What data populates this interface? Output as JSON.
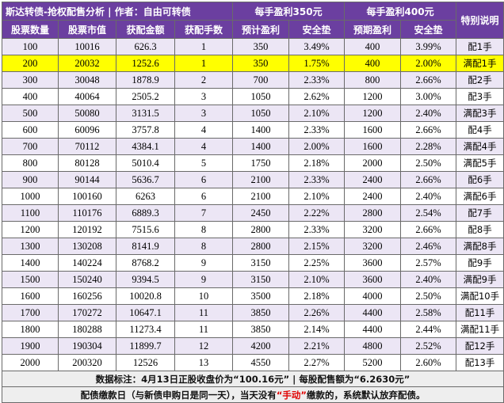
{
  "title": "斯达转债-抢权配售分析 | 作者：自由可转债",
  "group1": "每手盈利350元",
  "group2": "每手盈利400元",
  "special": "特别说明",
  "columns": [
    "股票数量",
    "股票市值",
    "获配金额",
    "获配手数",
    "预计盈利",
    "安全垫",
    "预期盈利",
    "安全垫"
  ],
  "rows": [
    {
      "qty": "100",
      "value": "10016",
      "amount": "626.3",
      "lots": "1",
      "p1": "350",
      "s1": "3.49%",
      "p2": "400",
      "s2": "3.99%",
      "note": "配1手",
      "hl": false
    },
    {
      "qty": "200",
      "value": "20032",
      "amount": "1252.6",
      "lots": "1",
      "p1": "350",
      "s1": "1.75%",
      "p2": "400",
      "s2": "2.00%",
      "note": "满配1手",
      "hl": true
    },
    {
      "qty": "300",
      "value": "30048",
      "amount": "1878.9",
      "lots": "2",
      "p1": "700",
      "s1": "2.33%",
      "p2": "800",
      "s2": "2.66%",
      "note": "配2手",
      "hl": false
    },
    {
      "qty": "400",
      "value": "40064",
      "amount": "2505.2",
      "lots": "3",
      "p1": "1050",
      "s1": "2.62%",
      "p2": "1200",
      "s2": "3.00%",
      "note": "配3手",
      "hl": false
    },
    {
      "qty": "500",
      "value": "50080",
      "amount": "3131.5",
      "lots": "3",
      "p1": "1050",
      "s1": "2.10%",
      "p2": "1200",
      "s2": "2.40%",
      "note": "满配3手",
      "hl": false
    },
    {
      "qty": "600",
      "value": "60096",
      "amount": "3757.8",
      "lots": "4",
      "p1": "1400",
      "s1": "2.33%",
      "p2": "1600",
      "s2": "2.66%",
      "note": "配4手",
      "hl": false
    },
    {
      "qty": "700",
      "value": "70112",
      "amount": "4384.1",
      "lots": "4",
      "p1": "1400",
      "s1": "2.00%",
      "p2": "1600",
      "s2": "2.28%",
      "note": "满配4手",
      "hl": false
    },
    {
      "qty": "800",
      "value": "80128",
      "amount": "5010.4",
      "lots": "5",
      "p1": "1750",
      "s1": "2.18%",
      "p2": "2000",
      "s2": "2.50%",
      "note": "满配5手",
      "hl": false
    },
    {
      "qty": "900",
      "value": "90144",
      "amount": "5636.7",
      "lots": "6",
      "p1": "2100",
      "s1": "2.33%",
      "p2": "2400",
      "s2": "2.66%",
      "note": "配6手",
      "hl": false
    },
    {
      "qty": "1000",
      "value": "100160",
      "amount": "6263",
      "lots": "6",
      "p1": "2100",
      "s1": "2.10%",
      "p2": "2400",
      "s2": "2.40%",
      "note": "满配6手",
      "hl": false
    },
    {
      "qty": "1100",
      "value": "110176",
      "amount": "6889.3",
      "lots": "7",
      "p1": "2450",
      "s1": "2.22%",
      "p2": "2800",
      "s2": "2.54%",
      "note": "配7手",
      "hl": false
    },
    {
      "qty": "1200",
      "value": "120192",
      "amount": "7515.6",
      "lots": "8",
      "p1": "2800",
      "s1": "2.33%",
      "p2": "3200",
      "s2": "2.66%",
      "note": "配8手",
      "hl": false
    },
    {
      "qty": "1300",
      "value": "130208",
      "amount": "8141.9",
      "lots": "8",
      "p1": "2800",
      "s1": "2.15%",
      "p2": "3200",
      "s2": "2.46%",
      "note": "满配8手",
      "hl": false
    },
    {
      "qty": "1400",
      "value": "140224",
      "amount": "8768.2",
      "lots": "9",
      "p1": "3150",
      "s1": "2.25%",
      "p2": "3600",
      "s2": "2.57%",
      "note": "配9手",
      "hl": false
    },
    {
      "qty": "1500",
      "value": "150240",
      "amount": "9394.5",
      "lots": "9",
      "p1": "3150",
      "s1": "2.10%",
      "p2": "3600",
      "s2": "2.40%",
      "note": "满配9手",
      "hl": false
    },
    {
      "qty": "1600",
      "value": "160256",
      "amount": "10020.8",
      "lots": "10",
      "p1": "3500",
      "s1": "2.18%",
      "p2": "4000",
      "s2": "2.50%",
      "note": "满配10手",
      "hl": false
    },
    {
      "qty": "1700",
      "value": "170272",
      "amount": "10647.1",
      "lots": "11",
      "p1": "3850",
      "s1": "2.26%",
      "p2": "4400",
      "s2": "2.58%",
      "note": "配11手",
      "hl": false
    },
    {
      "qty": "1800",
      "value": "180288",
      "amount": "11273.4",
      "lots": "11",
      "p1": "3850",
      "s1": "2.14%",
      "p2": "4400",
      "s2": "2.44%",
      "note": "满配11手",
      "hl": false
    },
    {
      "qty": "1900",
      "value": "190304",
      "amount": "11899.7",
      "lots": "12",
      "p1": "4200",
      "s1": "2.21%",
      "p2": "4800",
      "s2": "2.52%",
      "note": "配12手",
      "hl": false
    },
    {
      "qty": "2000",
      "value": "200320",
      "amount": "12526",
      "lots": "13",
      "p1": "4550",
      "s1": "2.27%",
      "p2": "5200",
      "s2": "2.60%",
      "note": "配13手",
      "hl": false
    }
  ],
  "footnote1": "数据标注：4月13日正股收盘价为“100.16元” | 每股配售额为“6.2630元”",
  "footnote2_pre": "配债缴款日（与新债申购日是同一天），当天没有",
  "footnote2_red": "“手动”",
  "footnote2_post": "缴款的，系统默认放弃配债。"
}
